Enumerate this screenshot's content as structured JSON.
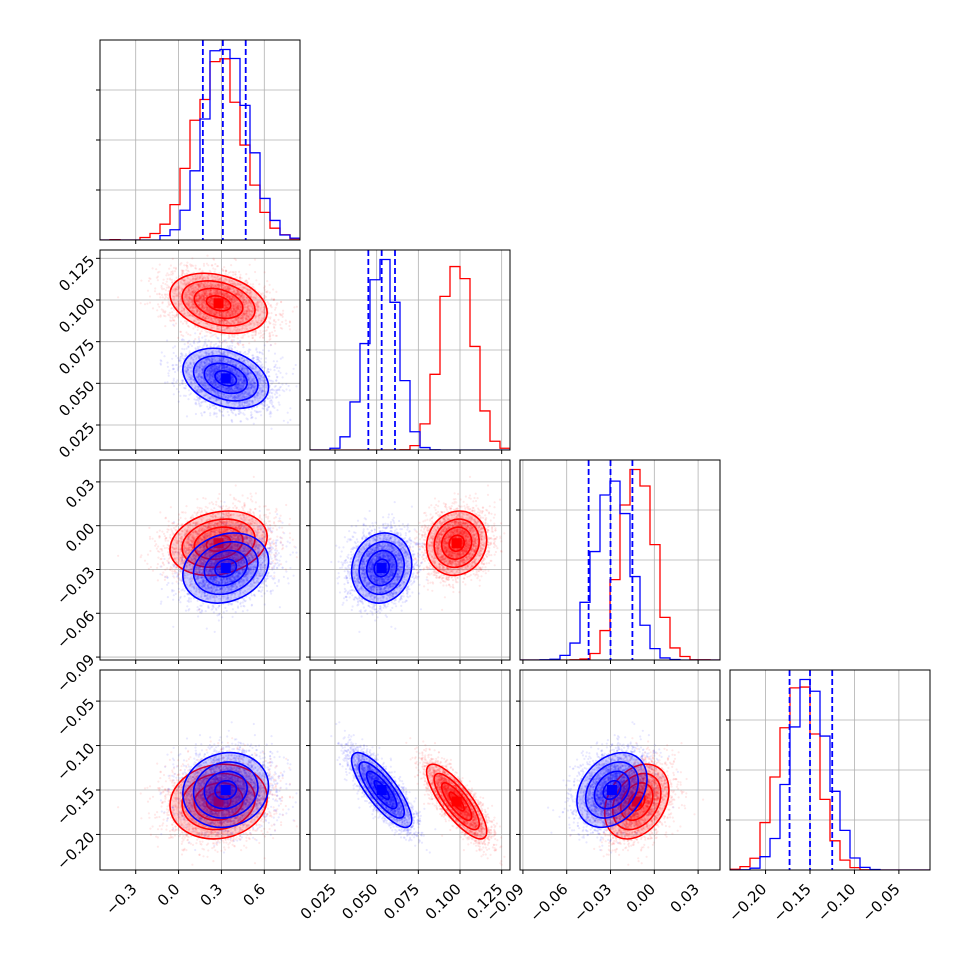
{
  "chart_data": {
    "type": "corner",
    "parameters": [
      {
        "range": [
          -0.55,
          0.85
        ],
        "ticks": [
          -0.3,
          0.0,
          0.3,
          0.6
        ],
        "tick_labels": [
          "−0.3",
          "0.0",
          "0.3",
          "0.6"
        ]
      },
      {
        "range": [
          0.01,
          0.13
        ],
        "ticks": [
          0.025,
          0.05,
          0.075,
          0.1,
          0.125
        ],
        "tick_labels": [
          "0.025",
          "0.050",
          "0.075",
          "0.100",
          "0.125"
        ]
      },
      {
        "range": [
          -0.092,
          0.045
        ],
        "ticks": [
          -0.09,
          -0.06,
          -0.03,
          0.0,
          0.03
        ],
        "tick_labels": [
          "−0.09",
          "−0.06",
          "−0.03",
          "0.00",
          "0.03"
        ]
      },
      {
        "range": [
          -0.24,
          -0.015
        ],
        "ticks": [
          -0.2,
          -0.15,
          -0.1,
          -0.05
        ],
        "tick_labels": [
          "−0.20",
          "−0.15",
          "−0.10",
          "−0.05"
        ]
      }
    ],
    "series": [
      {
        "color": "#ff0000",
        "means": [
          0.28,
          0.098,
          -0.012,
          -0.163
        ],
        "sds": [
          0.17,
          0.009,
          0.011,
          0.021
        ],
        "correlations": [
          [
            1,
            -0.3,
            0.2,
            0.1
          ],
          [
            -0.3,
            1,
            0.1,
            -0.8
          ],
          [
            0.2,
            0.1,
            1,
            0.3
          ],
          [
            0.1,
            -0.8,
            0.3,
            1
          ]
        ]
      },
      {
        "color": "#0000ff",
        "means": [
          0.33,
          0.053,
          -0.029,
          -0.15
        ],
        "sds": [
          0.15,
          0.009,
          0.012,
          0.021
        ],
        "correlations": [
          [
            1,
            -0.3,
            0.2,
            0.1
          ],
          [
            -0.3,
            1,
            0.1,
            -0.8
          ],
          [
            0.2,
            0.1,
            1,
            0.3
          ],
          [
            0.1,
            -0.8,
            0.3,
            1
          ]
        ]
      }
    ],
    "quantile_lines": {
      "color": "#0000ff",
      "style": "dashed",
      "values": [
        [
          0.17,
          0.31,
          0.47
        ],
        [
          0.045,
          0.053,
          0.061
        ],
        [
          -0.045,
          -0.03,
          -0.015
        ],
        [
          -0.173,
          -0.15,
          -0.125
        ]
      ]
    },
    "grid": true,
    "legend": "none"
  }
}
